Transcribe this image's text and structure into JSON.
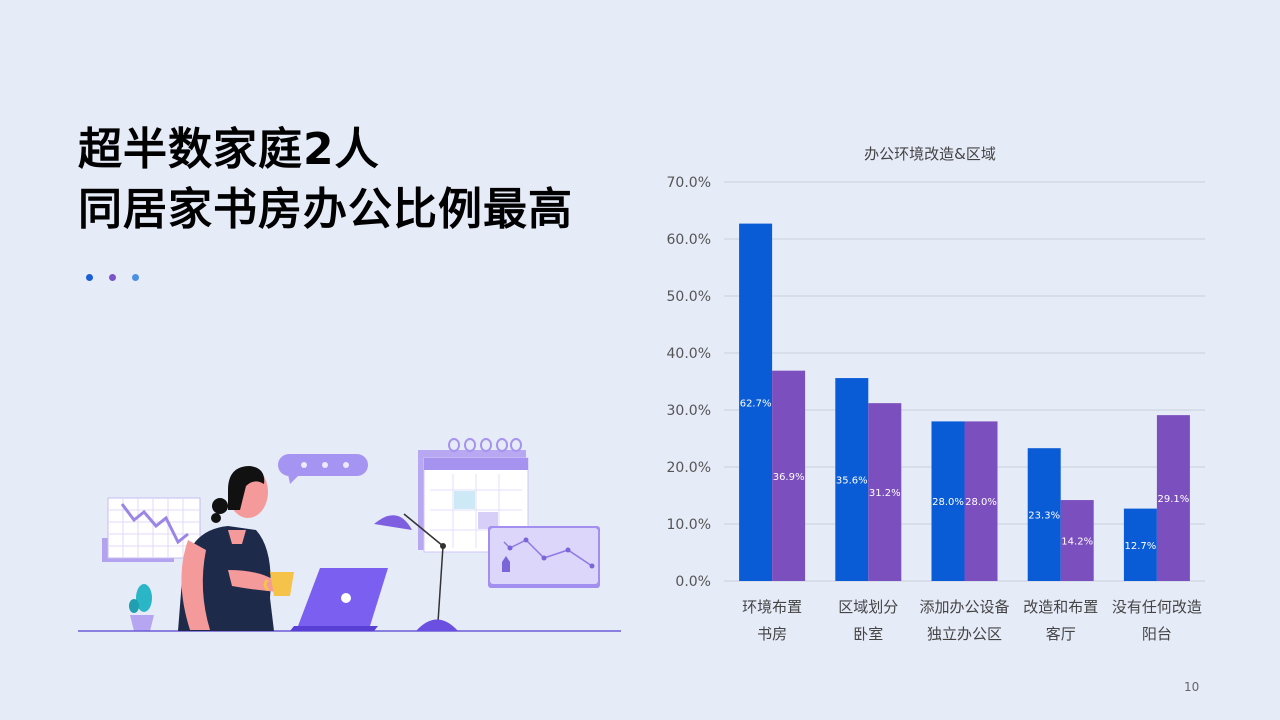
{
  "slide": {
    "title_line1": "超半数家庭2人",
    "title_line2": "同居家书房办公比例最高",
    "page_number": "10"
  },
  "colors": {
    "background": "#e6ebf8",
    "series1": "#0a5bd6",
    "series2": "#7b4fbe",
    "dot1": "#1a5ed8",
    "dot2": "#7b54c8",
    "dot3": "#4a90e2"
  },
  "illustration": {
    "icons": [
      "woman-at-laptop-illustration",
      "desk-lamp-icon",
      "calendar-icon",
      "chart-board-icon",
      "speech-bubble-icon",
      "plant-icon",
      "coffee-cup-icon"
    ]
  },
  "chart_data": {
    "type": "bar",
    "title": "办公环境改造&区域",
    "categories": [
      [
        "环境布置",
        "书房"
      ],
      [
        "区域划分",
        "卧室"
      ],
      [
        "添加办公设备",
        "独立办公区"
      ],
      [
        "改造和布置",
        "客厅"
      ],
      [
        "没有任何改造",
        "阳台"
      ]
    ],
    "series": [
      {
        "values": [
          62.7,
          35.6,
          28.0,
          23.3,
          12.7
        ],
        "labels": [
          "62.7%",
          "35.6%",
          "28.0%",
          "23.3%",
          "12.7%"
        ],
        "color": "#0a5bd6"
      },
      {
        "values": [
          36.9,
          31.2,
          28.0,
          14.2,
          29.1
        ],
        "labels": [
          "36.9%",
          "31.2%",
          "28.0%",
          "14.2%",
          "29.1%"
        ],
        "color": "#7b4fbe"
      }
    ],
    "y_ticks": [
      "0.0%",
      "10.0%",
      "20.0%",
      "30.0%",
      "40.0%",
      "50.0%",
      "60.0%",
      "70.0%"
    ],
    "ylim": [
      0,
      70
    ],
    "grid": true,
    "legend": "none"
  }
}
